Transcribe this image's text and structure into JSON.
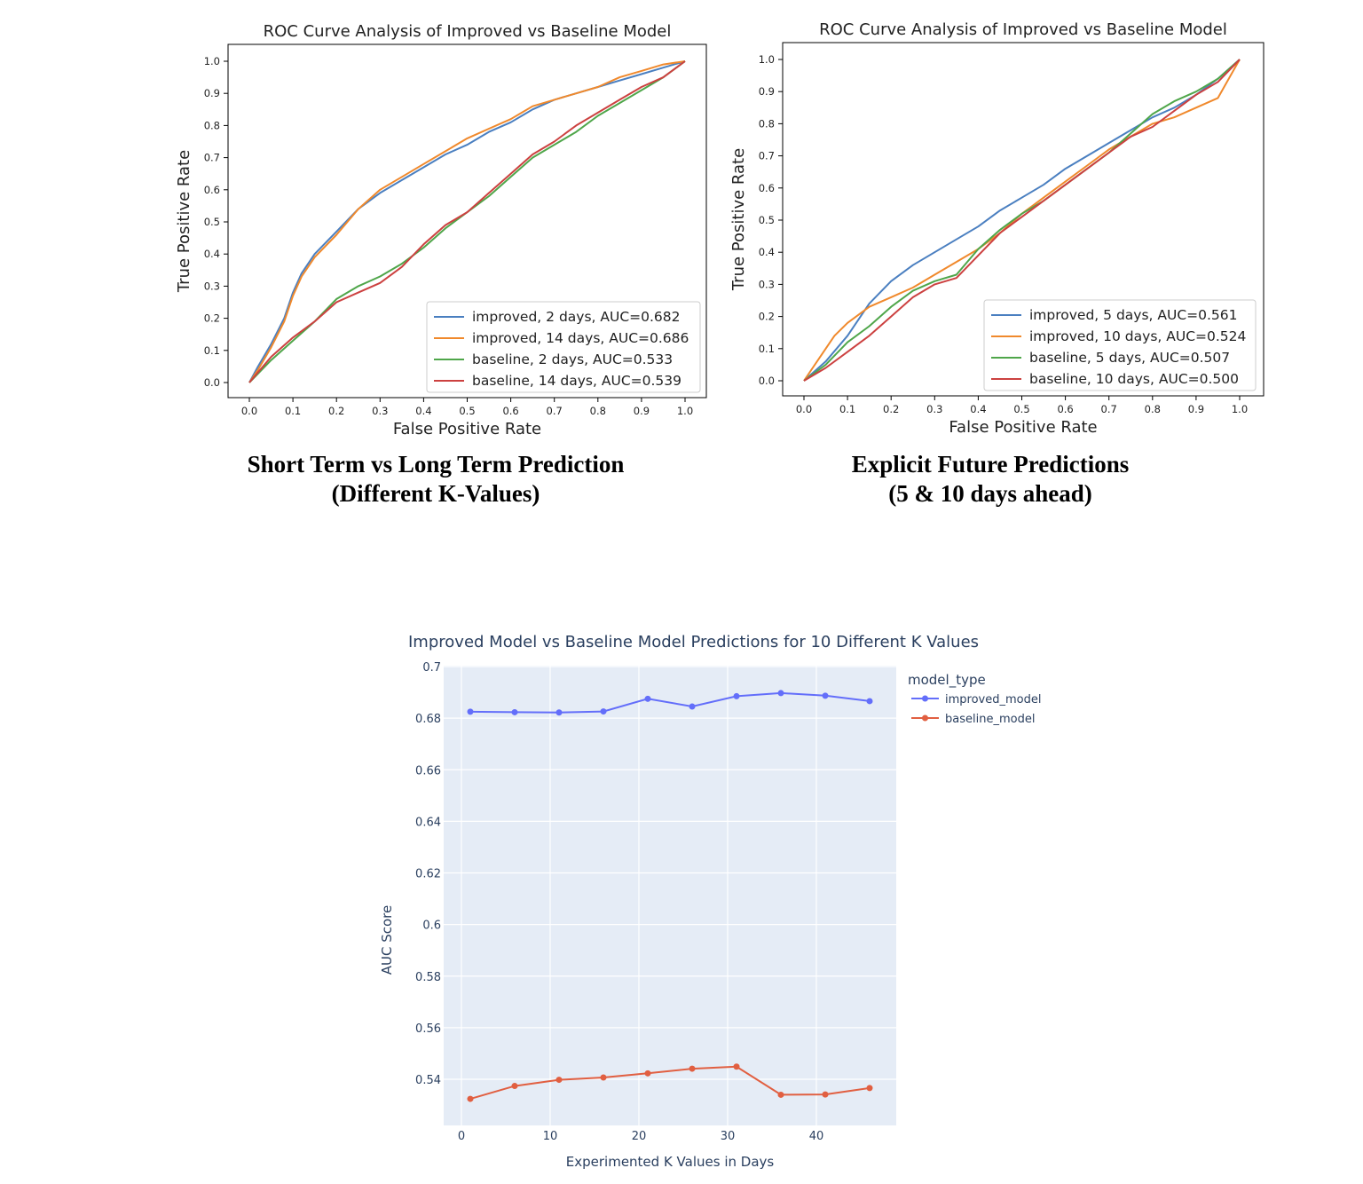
{
  "captions": {
    "left": {
      "line1": "Short Term vs Long Term Prediction",
      "line2": "(Different K-Values)"
    },
    "right": {
      "line1": "Explicit Future Predictions",
      "line2": "(5 & 10 days ahead)"
    }
  },
  "chart_data": [
    {
      "type": "line",
      "title": "ROC Curve Analysis of Improved vs Baseline Model",
      "xlabel": "False Positive Rate",
      "ylabel": "True Positive Rate",
      "xlim": [
        0,
        1
      ],
      "ylim": [
        0,
        1
      ],
      "xticks": [
        "0.0",
        "0.1",
        "0.2",
        "0.3",
        "0.4",
        "0.5",
        "0.6",
        "0.7",
        "0.8",
        "0.9",
        "1.0"
      ],
      "yticks": [
        "0.0",
        "0.1",
        "0.2",
        "0.3",
        "0.4",
        "0.5",
        "0.6",
        "0.7",
        "0.8",
        "0.9",
        "1.0"
      ],
      "legend_position": "lower right",
      "grid": false,
      "series": [
        {
          "name": "improved, 2 days, AUC=0.682",
          "color": "#4a7fc0",
          "x": [
            0,
            0.02,
            0.05,
            0.08,
            0.1,
            0.12,
            0.15,
            0.2,
            0.25,
            0.3,
            0.35,
            0.4,
            0.45,
            0.5,
            0.55,
            0.6,
            0.65,
            0.7,
            0.75,
            0.8,
            0.85,
            0.9,
            0.95,
            1.0
          ],
          "y": [
            0,
            0.05,
            0.12,
            0.2,
            0.28,
            0.34,
            0.4,
            0.47,
            0.54,
            0.59,
            0.63,
            0.67,
            0.71,
            0.74,
            0.78,
            0.81,
            0.85,
            0.88,
            0.9,
            0.92,
            0.94,
            0.96,
            0.98,
            1.0
          ]
        },
        {
          "name": "improved, 14 days, AUC=0.686",
          "color": "#f0892c",
          "x": [
            0,
            0.02,
            0.05,
            0.08,
            0.1,
            0.12,
            0.15,
            0.2,
            0.25,
            0.3,
            0.35,
            0.4,
            0.45,
            0.5,
            0.55,
            0.6,
            0.65,
            0.7,
            0.75,
            0.8,
            0.85,
            0.9,
            0.95,
            1.0
          ],
          "y": [
            0,
            0.04,
            0.11,
            0.19,
            0.27,
            0.33,
            0.39,
            0.46,
            0.54,
            0.6,
            0.64,
            0.68,
            0.72,
            0.76,
            0.79,
            0.82,
            0.86,
            0.88,
            0.9,
            0.92,
            0.95,
            0.97,
            0.99,
            1.0
          ]
        },
        {
          "name": "baseline, 2 days, AUC=0.533",
          "color": "#4fa64a",
          "x": [
            0,
            0.05,
            0.1,
            0.15,
            0.2,
            0.25,
            0.3,
            0.35,
            0.4,
            0.45,
            0.5,
            0.55,
            0.6,
            0.65,
            0.7,
            0.75,
            0.8,
            0.85,
            0.9,
            0.95,
            1.0
          ],
          "y": [
            0,
            0.07,
            0.13,
            0.19,
            0.26,
            0.3,
            0.33,
            0.37,
            0.42,
            0.48,
            0.53,
            0.58,
            0.64,
            0.7,
            0.74,
            0.78,
            0.83,
            0.87,
            0.91,
            0.95,
            1.0
          ]
        },
        {
          "name": "baseline, 14 days, AUC=0.539",
          "color": "#cc4140",
          "x": [
            0,
            0.05,
            0.1,
            0.15,
            0.2,
            0.25,
            0.3,
            0.35,
            0.4,
            0.45,
            0.5,
            0.55,
            0.6,
            0.65,
            0.7,
            0.75,
            0.8,
            0.85,
            0.9,
            0.95,
            1.0
          ],
          "y": [
            0,
            0.08,
            0.14,
            0.19,
            0.25,
            0.28,
            0.31,
            0.36,
            0.43,
            0.49,
            0.53,
            0.59,
            0.65,
            0.71,
            0.75,
            0.8,
            0.84,
            0.88,
            0.92,
            0.95,
            1.0
          ]
        }
      ]
    },
    {
      "type": "line",
      "title": "ROC Curve Analysis of Improved vs Baseline Model",
      "xlabel": "False Positive Rate",
      "ylabel": "True Positive Rate",
      "xlim": [
        0,
        1
      ],
      "ylim": [
        0,
        1
      ],
      "xticks": [
        "0.0",
        "0.1",
        "0.2",
        "0.3",
        "0.4",
        "0.5",
        "0.6",
        "0.7",
        "0.8",
        "0.9",
        "1.0"
      ],
      "yticks": [
        "0.0",
        "0.1",
        "0.2",
        "0.3",
        "0.4",
        "0.5",
        "0.6",
        "0.7",
        "0.8",
        "0.9",
        "1.0"
      ],
      "legend_position": "lower right",
      "grid": false,
      "series": [
        {
          "name": "improved, 5 days, AUC=0.561",
          "color": "#4a7fc0",
          "x": [
            0,
            0.05,
            0.1,
            0.15,
            0.2,
            0.25,
            0.3,
            0.35,
            0.4,
            0.45,
            0.5,
            0.55,
            0.6,
            0.65,
            0.7,
            0.75,
            0.8,
            0.85,
            0.9,
            0.95,
            1.0
          ],
          "y": [
            0,
            0.06,
            0.14,
            0.24,
            0.31,
            0.36,
            0.4,
            0.44,
            0.48,
            0.53,
            0.57,
            0.61,
            0.66,
            0.7,
            0.74,
            0.78,
            0.82,
            0.85,
            0.89,
            0.94,
            1.0
          ]
        },
        {
          "name": "improved, 10 days, AUC=0.524",
          "color": "#f0892c",
          "x": [
            0,
            0.03,
            0.07,
            0.1,
            0.15,
            0.2,
            0.25,
            0.3,
            0.35,
            0.4,
            0.45,
            0.5,
            0.55,
            0.6,
            0.65,
            0.7,
            0.75,
            0.8,
            0.85,
            0.9,
            0.95,
            1.0
          ],
          "y": [
            0,
            0.06,
            0.14,
            0.18,
            0.23,
            0.26,
            0.29,
            0.33,
            0.37,
            0.41,
            0.46,
            0.52,
            0.57,
            0.62,
            0.67,
            0.72,
            0.76,
            0.8,
            0.82,
            0.85,
            0.88,
            1.0
          ]
        },
        {
          "name": "baseline, 5 days, AUC=0.507",
          "color": "#4fa64a",
          "x": [
            0,
            0.05,
            0.1,
            0.15,
            0.2,
            0.25,
            0.3,
            0.35,
            0.4,
            0.45,
            0.5,
            0.55,
            0.6,
            0.65,
            0.7,
            0.75,
            0.8,
            0.85,
            0.9,
            0.95,
            1.0
          ],
          "y": [
            0,
            0.05,
            0.12,
            0.17,
            0.23,
            0.28,
            0.31,
            0.33,
            0.41,
            0.47,
            0.52,
            0.56,
            0.61,
            0.66,
            0.71,
            0.77,
            0.83,
            0.87,
            0.9,
            0.94,
            1.0
          ]
        },
        {
          "name": "baseline, 10 days, AUC=0.500",
          "color": "#cc4140",
          "x": [
            0,
            0.05,
            0.1,
            0.15,
            0.2,
            0.25,
            0.3,
            0.35,
            0.4,
            0.45,
            0.5,
            0.55,
            0.6,
            0.65,
            0.7,
            0.75,
            0.8,
            0.85,
            0.9,
            0.95,
            1.0
          ],
          "y": [
            0,
            0.04,
            0.09,
            0.14,
            0.2,
            0.26,
            0.3,
            0.32,
            0.39,
            0.46,
            0.51,
            0.56,
            0.61,
            0.66,
            0.71,
            0.76,
            0.79,
            0.84,
            0.89,
            0.93,
            1.0
          ]
        }
      ]
    },
    {
      "type": "line",
      "title": "Improved Model vs Baseline Model Predictions for 10 Different K Values",
      "xlabel": "Experimented K Values in Days",
      "ylabel": "AUC Score",
      "xlim": [
        -2,
        47
      ],
      "ylim": [
        0.517,
        0.7
      ],
      "xticks": [
        0,
        10,
        20,
        30,
        40
      ],
      "yticks": [
        "0.54",
        "0.56",
        "0.58",
        "0.6",
        "0.62",
        "0.64",
        "0.66",
        "0.68",
        "0.7"
      ],
      "legend_title": "model_type",
      "legend_position": "right",
      "grid": true,
      "background": "#e5ecf6",
      "x": [
        1,
        6,
        11,
        16,
        21,
        26,
        31,
        36,
        41,
        46
      ],
      "series": [
        {
          "name": "improved_model",
          "color": "#636efa",
          "values": [
            0.6825,
            0.6823,
            0.6822,
            0.6826,
            0.6875,
            0.6845,
            0.6885,
            0.6897,
            0.6887,
            0.6866
          ]
        },
        {
          "name": "baseline_model",
          "color": "#e15f41",
          "values": [
            0.5324,
            0.5374,
            0.5398,
            0.5407,
            0.5423,
            0.5441,
            0.5449,
            0.534,
            0.5341,
            0.5366
          ]
        }
      ]
    }
  ]
}
